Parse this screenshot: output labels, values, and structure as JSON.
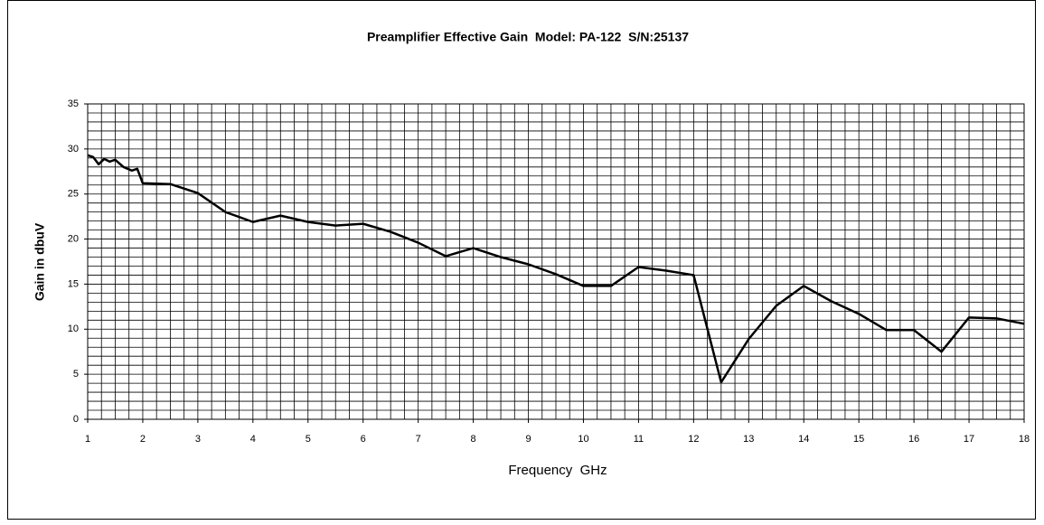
{
  "chart_data": {
    "type": "line",
    "title": "Preamplifier Effective Gain  Model: PA-122  S/N:25137",
    "x_label": "Frequency  GHz",
    "y_label": "Gain in dbuV",
    "x": [
      1,
      1.1,
      1.2,
      1.3,
      1.4,
      1.5,
      1.65,
      1.8,
      1.9,
      2,
      2.5,
      3,
      3.5,
      4,
      4.5,
      5,
      5.5,
      6,
      6.5,
      7,
      7.5,
      8,
      8.5,
      9,
      9.5,
      10,
      10.5,
      11,
      11.5,
      12,
      12.5,
      13,
      13.5,
      14,
      14.5,
      15,
      15.5,
      16,
      16.5,
      17,
      17.5,
      18
    ],
    "series": [
      {
        "name": "Gain",
        "color": "#000000",
        "values": [
          29.3,
          29.1,
          28.3,
          28.9,
          28.6,
          28.8,
          28.0,
          27.6,
          27.8,
          26.2,
          26.1,
          25.1,
          23.0,
          21.9,
          22.6,
          21.9,
          21.5,
          21.7,
          20.8,
          19.6,
          18.1,
          19.0,
          18.0,
          17.2,
          16.1,
          14.8,
          14.8,
          16.9,
          16.5,
          16.0,
          4.1,
          8.9,
          12.6,
          14.8,
          13.1,
          11.7,
          9.9,
          9.9,
          7.5,
          11.3,
          11.2,
          10.6
        ]
      }
    ],
    "xlim": [
      1,
      18
    ],
    "xticks": [
      1,
      2,
      3,
      4,
      5,
      6,
      7,
      8,
      9,
      10,
      11,
      12,
      13,
      14,
      15,
      16,
      17,
      18
    ],
    "ylim": [
      0,
      35
    ],
    "yticks": [
      0,
      5,
      10,
      15,
      20,
      25,
      30,
      35
    ],
    "grid": true,
    "minor_grid_step": {
      "x": 0.25,
      "y": 1
    }
  }
}
